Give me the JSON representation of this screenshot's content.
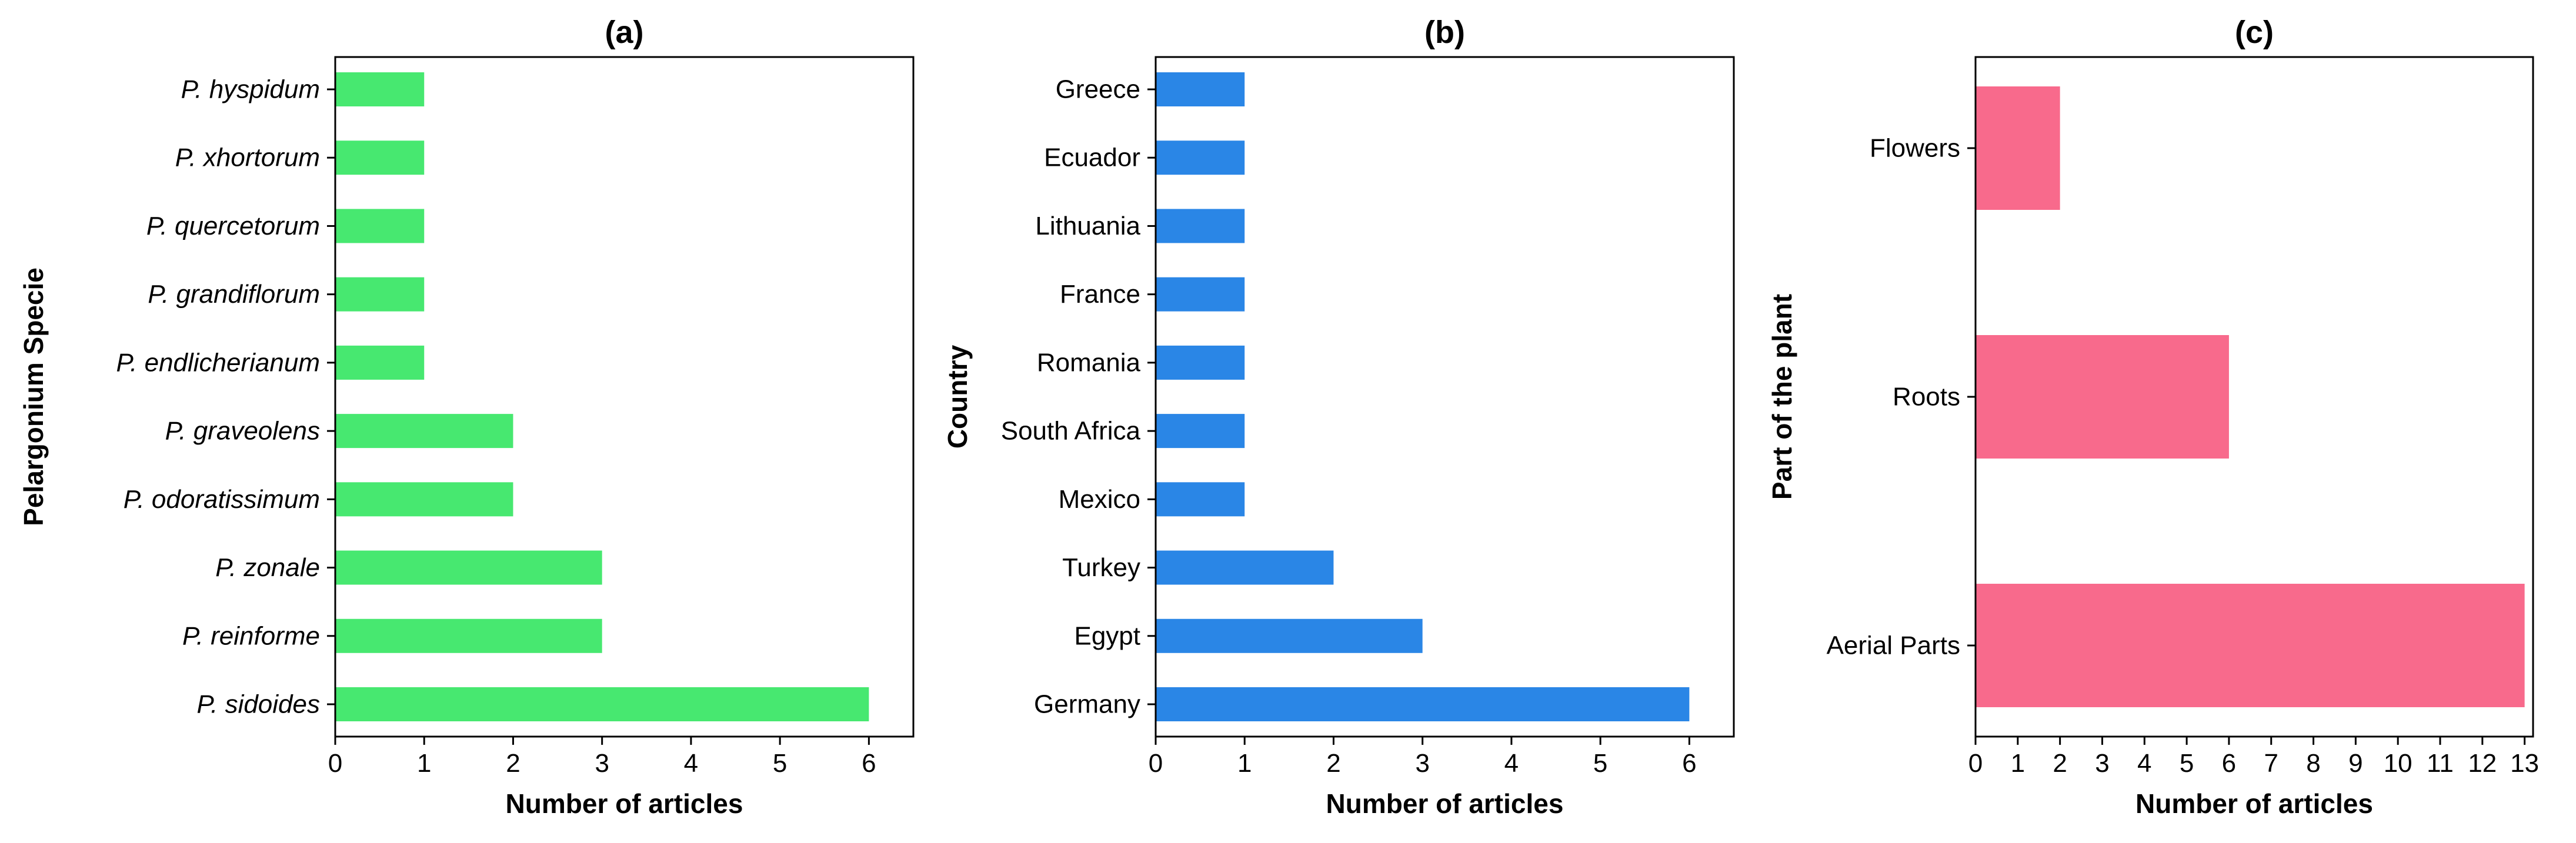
{
  "chart_data": [
    {
      "type": "bar",
      "orientation": "horizontal",
      "title": "(a)",
      "xlabel": "Number of articles",
      "ylabel": "Pelargonium Specie",
      "categories": [
        "P. hyspidum",
        "P. xhortorum",
        "P. quercetorum",
        "P. grandiflorum",
        "P. endlicherianum",
        "P. graveolens",
        "P. odoratissimum",
        "P. zonale",
        "P. reinforme",
        "P. sidoides"
      ],
      "values": [
        1,
        1,
        1,
        1,
        1,
        2,
        2,
        3,
        3,
        6
      ],
      "xlim": [
        0,
        6.5
      ],
      "xticks": [
        "0",
        "1",
        "2",
        "3",
        "4",
        "5",
        "6"
      ],
      "color": "#47e870",
      "italic_categories": true,
      "grid": false
    },
    {
      "type": "bar",
      "orientation": "horizontal",
      "title": "(b)",
      "xlabel": "Number of articles",
      "ylabel": "Country",
      "categories": [
        "Greece",
        "Ecuador",
        "Lithuania",
        "France",
        "Romania",
        "South Africa",
        "Mexico",
        "Turkey",
        "Egypt",
        "Germany"
      ],
      "values": [
        1,
        1,
        1,
        1,
        1,
        1,
        1,
        2,
        3,
        6
      ],
      "xlim": [
        0,
        6.5
      ],
      "xticks": [
        "0",
        "1",
        "2",
        "3",
        "4",
        "5",
        "6"
      ],
      "color": "#2a86e6",
      "italic_categories": false,
      "grid": false
    },
    {
      "type": "bar",
      "orientation": "horizontal",
      "title": "(c)",
      "xlabel": "Number of articles",
      "ylabel": "Part of the plant",
      "categories": [
        "Flowers",
        "Roots",
        "Aerial Parts"
      ],
      "values": [
        2,
        6,
        13
      ],
      "xlim": [
        0,
        13.2
      ],
      "xticks": [
        "0",
        "1",
        "2",
        "3",
        "4",
        "5",
        "6",
        "7",
        "8",
        "9",
        "10",
        "11",
        "12",
        "13"
      ],
      "color": "#f86a8c",
      "italic_categories": false,
      "grid": false
    }
  ]
}
